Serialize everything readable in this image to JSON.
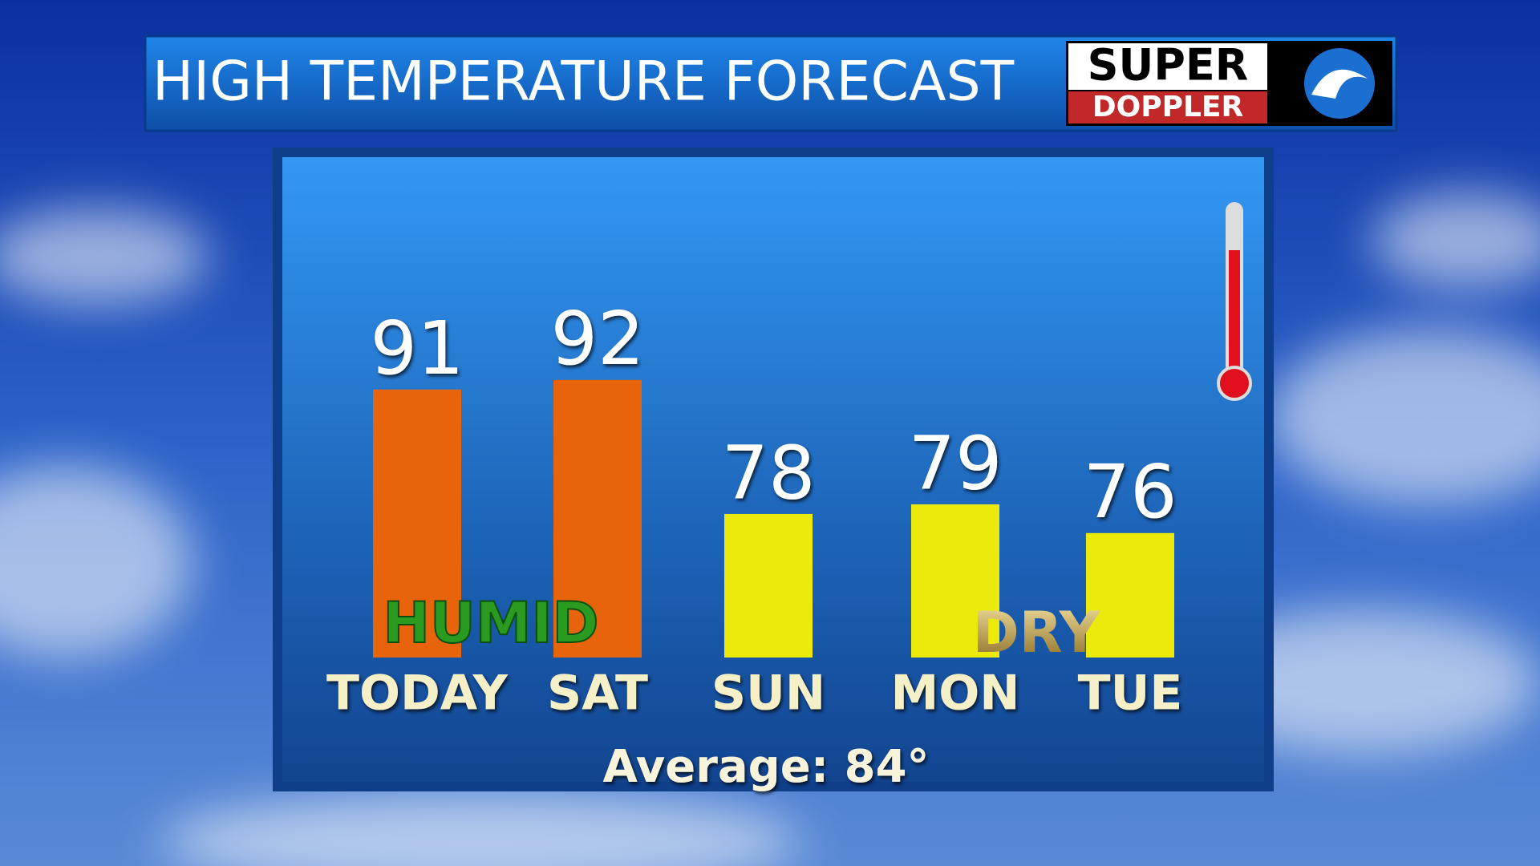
{
  "chart_data": {
    "type": "bar",
    "title": "HIGH TEMPERATURE FORECAST",
    "logo": {
      "line1": "SUPER",
      "line2": "DOPPLER"
    },
    "categories": [
      "TODAY",
      "SAT",
      "SUN",
      "MON",
      "TUE"
    ],
    "values": [
      91,
      92,
      78,
      79,
      76
    ],
    "colors": [
      "#e8640c",
      "#e8640c",
      "#ecea0a",
      "#ecea0a",
      "#ecea0a"
    ],
    "ylim": [
      63,
      95
    ],
    "annotations": [
      "HUMID",
      "DRY"
    ],
    "footer": "Average: 84°"
  }
}
